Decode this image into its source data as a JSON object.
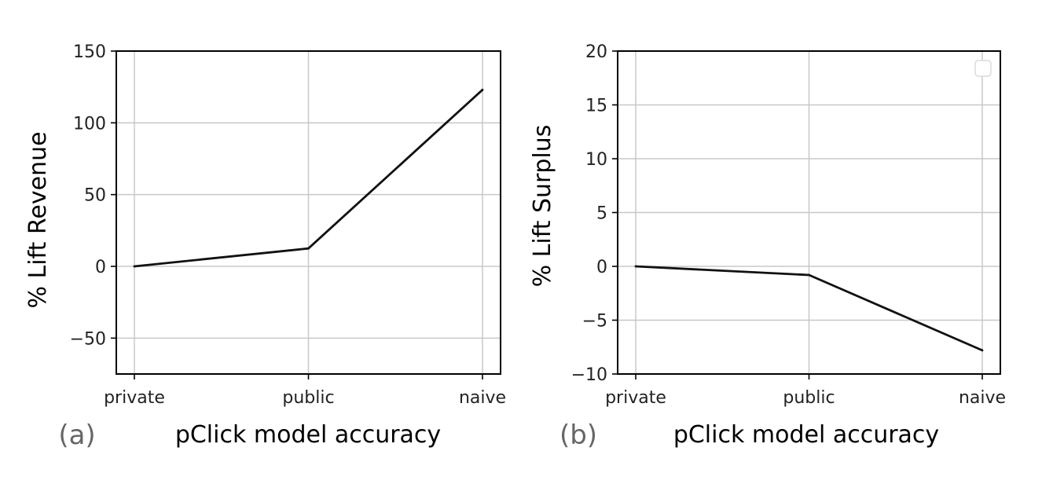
{
  "chart_data": [
    {
      "type": "line",
      "panel_label": "(a)",
      "categories": [
        "private",
        "public",
        "naive"
      ],
      "values": [
        0,
        12.5,
        123
      ],
      "xlabel": "pClick model accuracy",
      "ylabel": "% Lift Revenue",
      "ylim": [
        -75,
        150
      ],
      "yticks": [
        -50,
        0,
        50,
        100,
        150
      ],
      "ytick_labels": [
        "−50",
        "0",
        "50",
        "100",
        "150"
      ],
      "grid": true,
      "color": "#111111"
    },
    {
      "type": "line",
      "panel_label": "(b)",
      "categories": [
        "private",
        "public",
        "naive"
      ],
      "values": [
        0,
        -0.8,
        -7.8
      ],
      "xlabel": "pClick model accuracy",
      "ylabel": "% Lift Surplus",
      "ylim": [
        -10,
        20
      ],
      "yticks": [
        -10,
        -5,
        0,
        5,
        10,
        15,
        20
      ],
      "ytick_labels": [
        "−10",
        "−5",
        "0",
        "5",
        "10",
        "15",
        "20"
      ],
      "grid": true,
      "legend": "top-right",
      "color": "#111111"
    }
  ]
}
